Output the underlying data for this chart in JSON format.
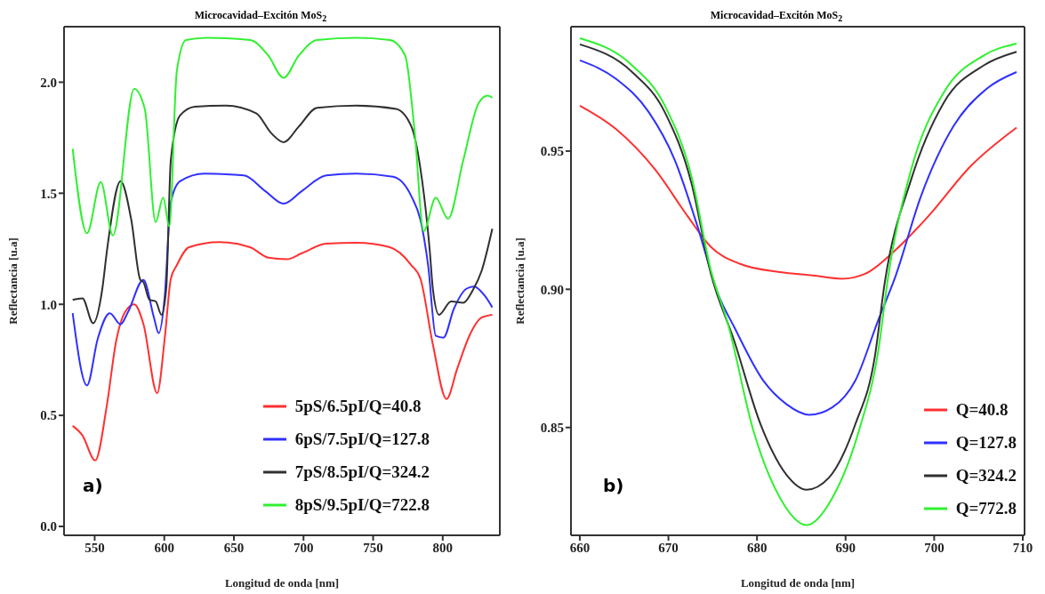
{
  "chart_data": [
    {
      "type": "line",
      "title": "Microcavidad–Excitón MoS$_{2}$",
      "xlabel": "Longitud de onda [nm]",
      "ylabel": "Reflectancia [u.a]",
      "xlim": [
        528,
        841
      ],
      "xticks": [
        550,
        600,
        650,
        700,
        750,
        800
      ],
      "ylim": [
        -0.04,
        2.25
      ],
      "yticks": [
        {
          "value": 0,
          "label": "0.0"
        },
        0.5,
        {
          "value": 1,
          "label": "1.0"
        },
        1.5,
        {
          "value": 2,
          "label": "2.0"
        }
      ],
      "grid": false,
      "legend": "bottom right",
      "marker": "none",
      "line_style": "solid",
      "annotations": [
        "a)"
      ],
      "series": [
        {
          "name": "5pS/6.5pI/Q=40.8",
          "color": "#ff3030",
          "x": [
            534.2,
            541.2,
            550.4,
            558.8,
            565.3,
            571.9,
            578.4,
            585,
            594.9,
            600.3,
            604.7,
            609,
            617.8,
            639.7,
            661.6,
            674.7,
            687.9,
            698.8,
            716.3,
            738,
            762,
            777.5,
            784,
            792.9,
            802.7,
            810.4,
            819.1,
            827.9,
            835.6
          ],
          "values": [
            0.453,
            0.41,
            0.297,
            0.547,
            0.83,
            0.966,
            1.0,
            0.912,
            0.6,
            0.845,
            1.115,
            1.176,
            1.257,
            1.28,
            1.257,
            1.21,
            1.203,
            1.23,
            1.273,
            1.277,
            1.257,
            1.176,
            1.115,
            0.82,
            0.574,
            0.71,
            0.858,
            0.94,
            0.953
          ]
        },
        {
          "name": "6pS/7.5pI/Q=127.8",
          "color": "#3030ff",
          "x": [
            534.2,
            544.5,
            552.2,
            560.9,
            568.6,
            574,
            585,
            592.6,
            596,
            600.3,
            604.7,
            611.3,
            628.8,
            657.2,
            672.5,
            685.7,
            698.8,
            716.3,
            738,
            764.3,
            777.5,
            784,
            789.5,
            795,
            800.5,
            808,
            817,
            822.4,
            830,
            835.6
          ],
          "values": [
            0.96,
            0.635,
            0.845,
            0.96,
            0.91,
            0.966,
            1.11,
            0.94,
            0.87,
            1.034,
            1.46,
            1.554,
            1.588,
            1.58,
            1.51,
            1.453,
            1.51,
            1.58,
            1.588,
            1.574,
            1.486,
            1.38,
            1.176,
            0.858,
            0.85,
            0.98,
            1.07,
            1.08,
            1.04,
            0.986
          ]
        },
        {
          "name": "7pS/8.5pI/Q=324.2",
          "color": "#303030",
          "x": [
            534.2,
            541.2,
            548.9,
            555.5,
            558.8,
            568.6,
            576.3,
            582.8,
            585,
            589.4,
            593.8,
            598,
            601.4,
            604.7,
            611.3,
            622,
            644,
            666,
            676.9,
            685.7,
            696.6,
            709.7,
            738,
            766.5,
            777.5,
            784,
            790.7,
            792.9,
            797.3,
            806,
            814.8,
            821.3,
            827.9,
            835.6
          ],
          "values": [
            1.02,
            1.027,
            0.915,
            1.07,
            1.24,
            1.554,
            1.38,
            1.11,
            1.1,
            1.02,
            1.013,
            0.953,
            1.07,
            1.65,
            1.85,
            1.89,
            1.895,
            1.86,
            1.77,
            1.73,
            1.8,
            1.885,
            1.895,
            1.88,
            1.8,
            1.61,
            1.24,
            1.07,
            0.953,
            1.013,
            1.007,
            1.06,
            1.15,
            1.34
          ]
        },
        {
          "name": "8pS/9.5pI/Q=722.8",
          "color": "#30f030",
          "x": [
            534.2,
            544.5,
            554.4,
            563.1,
            578.4,
            586,
            593.8,
            599.2,
            603.6,
            609,
            615.6,
            631,
            661.6,
            674.7,
            685.7,
            696.6,
            709.7,
            738,
            762,
            773,
            779.8,
            786.3,
            795,
            803.8,
            814.8,
            825.7,
            832.3,
            835.6
          ],
          "values": [
            1.7,
            1.32,
            1.55,
            1.31,
            1.97,
            1.88,
            1.37,
            1.48,
            1.35,
            2.05,
            2.19,
            2.2,
            2.19,
            2.12,
            2.02,
            2.12,
            2.19,
            2.2,
            2.19,
            2.12,
            1.78,
            1.33,
            1.48,
            1.385,
            1.65,
            1.905,
            1.94,
            1.93
          ]
        }
      ]
    },
    {
      "type": "line",
      "title": "Microcavidad–Excitón MoS$_{2}$",
      "xlabel": "Longitud de onda [nm]",
      "ylabel": "Reflectancia [u.a]",
      "xlim": [
        659,
        710.2
      ],
      "xticks": [
        660,
        670,
        680,
        690,
        700,
        710
      ],
      "ylim": [
        0.811,
        0.995
      ],
      "yticks": [
        0.85,
        {
          "value": 0.9,
          "label": "0.90"
        },
        0.95
      ],
      "grid": false,
      "legend": "bottom right",
      "marker": "none",
      "line_style": "solid",
      "annotations": [
        "b)"
      ],
      "series": [
        {
          "name": "Q=40.8",
          "color": "#ff3030",
          "x": [
            660,
            664.1,
            668.5,
            672.2,
            674.8,
            678.1,
            682.6,
            686.3,
            689.6,
            692.2,
            695.6,
            699.3,
            704.1,
            709.3
          ],
          "values": [
            0.9664,
            0.9579,
            0.9433,
            0.9263,
            0.9153,
            0.9092,
            0.9062,
            0.905,
            0.9038,
            0.9056,
            0.9141,
            0.9263,
            0.9445,
            0.9585
          ]
        },
        {
          "name": "Q=127.8",
          "color": "#3030ff",
          "x": [
            660,
            664.1,
            667.8,
            670.7,
            673.3,
            675.6,
            677.4,
            680.7,
            683.3,
            685.9,
            688.5,
            691.1,
            693.7,
            695.6,
            698.5,
            702.2,
            705.9,
            709.3
          ],
          "values": [
            0.9828,
            0.9761,
            0.964,
            0.9469,
            0.9226,
            0.8983,
            0.8865,
            0.867,
            0.8585,
            0.8546,
            0.8573,
            0.867,
            0.889,
            0.9044,
            0.9336,
            0.9591,
            0.9725,
            0.9786
          ]
        },
        {
          "name": "Q=324.2",
          "color": "#303030",
          "x": [
            660,
            665.9,
            669.6,
            672.6,
            674.8,
            677.4,
            680.4,
            683.3,
            685.6,
            688.1,
            691.1,
            693.3,
            694.4,
            697.4,
            701.1,
            705.6,
            709.3
          ],
          "values": [
            0.9886,
            0.9786,
            0.964,
            0.9384,
            0.9056,
            0.8816,
            0.8512,
            0.833,
            0.8275,
            0.8318,
            0.8512,
            0.8756,
            0.902,
            0.9397,
            0.9676,
            0.981,
            0.9859
          ]
        },
        {
          "name": "Q=772.8",
          "color": "#30f030",
          "x": [
            660,
            665.9,
            669.6,
            672.6,
            674.8,
            676.7,
            679.6,
            682.6,
            685.6,
            688.5,
            691.5,
            693.7,
            694.8,
            697.4,
            701.1,
            705.6,
            709.3
          ],
          "values": [
            0.9908,
            0.981,
            0.9664,
            0.9409,
            0.9068,
            0.8877,
            0.8488,
            0.8245,
            0.8147,
            0.8245,
            0.8488,
            0.878,
            0.9044,
            0.9433,
            0.9713,
            0.9846,
            0.9889
          ]
        }
      ]
    }
  ]
}
